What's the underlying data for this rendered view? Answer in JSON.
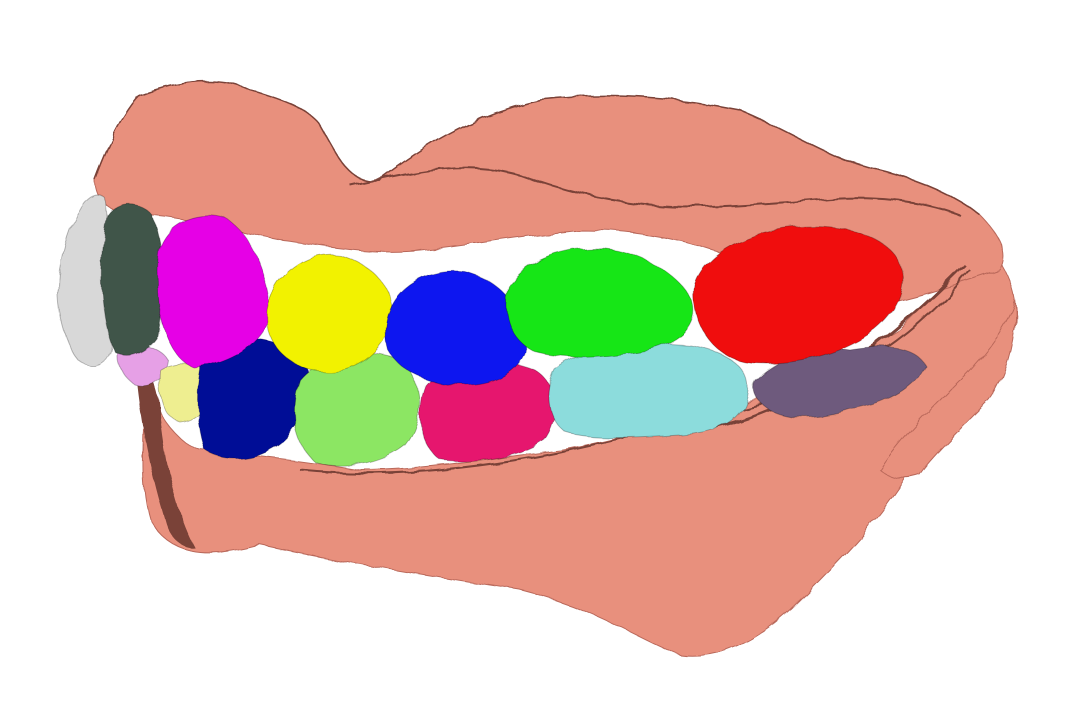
{
  "scene": {
    "subject": "dental-arch-3d-mesh",
    "background_color": "#ffffff",
    "gum_color": "#e8907d",
    "gum_shadow_color": "#b9685a",
    "gum_edge_color": "#7a4238"
  },
  "teeth": [
    {
      "id": "upper-incisor-white",
      "color": "#d8d8d8"
    },
    {
      "id": "upper-incisor-darkgreen",
      "color": "#3f5449"
    },
    {
      "id": "upper-canine-magenta",
      "color": "#e600e6"
    },
    {
      "id": "upper-premolar-yellow",
      "color": "#f2f200"
    },
    {
      "id": "upper-premolar-blue",
      "color": "#0a14f0"
    },
    {
      "id": "upper-molar-green",
      "color": "#14e614"
    },
    {
      "id": "upper-molar-red",
      "color": "#f01010"
    },
    {
      "id": "lower-incisor-pink",
      "color": "#e6a0e6"
    },
    {
      "id": "lower-incisor-paleyellow",
      "color": "#eeee90"
    },
    {
      "id": "lower-canine-navy",
      "color": "#000a96"
    },
    {
      "id": "lower-premolar-lightgreen",
      "color": "#8ce664"
    },
    {
      "id": "lower-premolar-crimson",
      "color": "#e6146e"
    },
    {
      "id": "lower-molar-cyan",
      "color": "#8cdcdc"
    },
    {
      "id": "lower-molar-slate",
      "color": "#6e5a7d"
    }
  ]
}
